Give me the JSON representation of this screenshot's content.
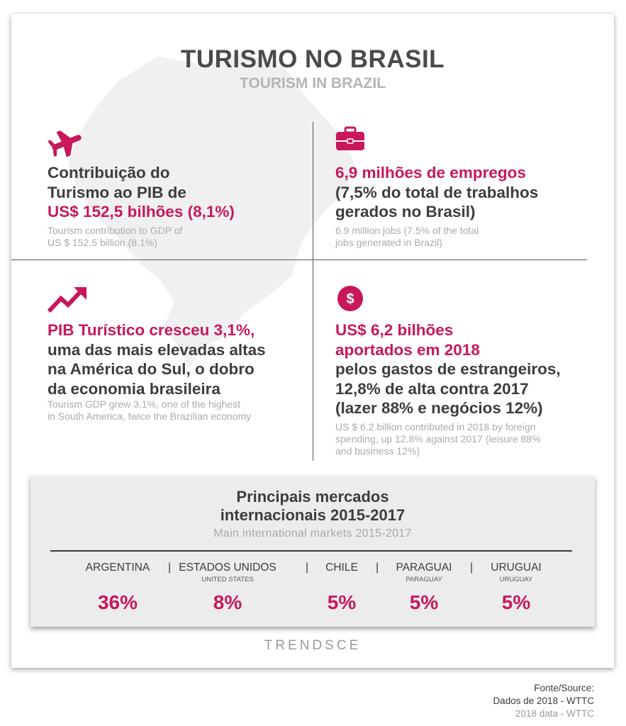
{
  "header": {
    "title": "TURISMO NO BRASIL",
    "subtitle": "TOURISM IN BRAZIL"
  },
  "colors": {
    "accent": "#c8185a",
    "text": "#3d3d3d",
    "muted": "#ababab",
    "panel": "#ececec"
  },
  "stats": {
    "gdp": {
      "icon": "airplane-icon",
      "line1": "Contribuição do",
      "line2": "Turismo ao PIB de",
      "highlight": "US$ 152,5 bilhões (8,1%)",
      "en1": "Tourism contribution to GDP of",
      "en2": "US $ 152.5 billion (8.1%)"
    },
    "jobs": {
      "icon": "briefcase-icon",
      "highlight": "6,9 milhões de empregos",
      "line1": "(7,5% do total de trabalhos",
      "line2": "gerados no Brasil)",
      "en1": "6.9 million jobs (7.5% of the total",
      "en2": "jobs generated in Brazil)"
    },
    "growth": {
      "icon": "trend-up-icon",
      "highlight": "PIB Turístico cresceu 3,1%,",
      "line1": "uma das mais elevadas altas",
      "line2": "na América do Sul, o dobro",
      "line3": "da economia brasileira",
      "en1": "Tourism GDP grew 3.1%, one of the highest",
      "en2": "in South America, twice the Brazilian economy"
    },
    "spending": {
      "icon": "dollar-icon",
      "highlight1": "US$ 6,2 bilhões",
      "highlight2": "aportados em 2018",
      "line1": "pelos gastos de estrangeiros,",
      "line2": "12,8% de alta contra 2017",
      "line3": "(lazer 88% e negócios 12%)",
      "en1": "US $ 6.2 billion contributed in 2018 by foreign",
      "en2": "spending, up 12.8% against 2017 (leisure 88%",
      "en3": "and business 12%)"
    }
  },
  "markets": {
    "title1": "Principais mercados",
    "title2": "internacionais 2015-2017",
    "subtitle": "Main international markets 2015-2017",
    "items": [
      {
        "name": "ARGENTINA",
        "name_en": "",
        "value": "36%"
      },
      {
        "name": "ESTADOS UNIDOS",
        "name_en": "UNITED STATES",
        "value": "8%"
      },
      {
        "name": "CHILE",
        "name_en": "",
        "value": "5%"
      },
      {
        "name": "PARAGUAI",
        "name_en": "PARAGUAY",
        "value": "5%"
      },
      {
        "name": "URUGUAI",
        "name_en": "URUGUAY",
        "value": "5%"
      }
    ],
    "separator": "|"
  },
  "brand": "TRENDSCE",
  "source": {
    "line1": "Fonte/Source:",
    "line2": "Dados de 2018 - WTTC",
    "line3": "2018 data - WTTC"
  }
}
